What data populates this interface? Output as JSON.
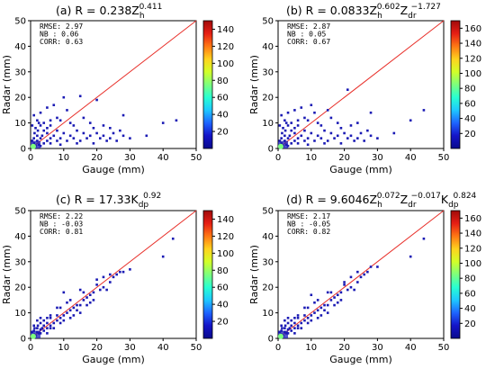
{
  "figure": {
    "colormap": [
      "#0a0a8c",
      "#1414c8",
      "#1e64ff",
      "#1ec8ff",
      "#28ffd2",
      "#7dff7d",
      "#d2ff28",
      "#ffd21e",
      "#ff7814",
      "#e61e14",
      "#a00a0a"
    ],
    "point_color": "#1a1ab4",
    "line_color": "#e8302a"
  },
  "chart_data": [
    {
      "type": "scatter",
      "panel": "(a)",
      "title_parts": [
        "(a)  R = 0.238Z",
        "h",
        "0.411"
      ],
      "xlabel": "Gauge (mm)",
      "ylabel": "Radar (mm)",
      "xlim": [
        0,
        50
      ],
      "ylim": [
        0,
        50
      ],
      "xticks": [
        0,
        10,
        20,
        30,
        40,
        50
      ],
      "yticks": [
        0,
        10,
        20,
        30,
        40,
        50
      ],
      "stats": [
        [
          "RMSE:",
          "2.97"
        ],
        [
          "NB  :",
          "0.06"
        ],
        [
          "CORR:",
          "0.63"
        ]
      ],
      "colorbar": {
        "min": 0,
        "max": 150,
        "ticks": [
          20,
          40,
          60,
          80,
          100,
          120,
          140
        ]
      },
      "reference_line": [
        [
          0,
          0
        ],
        [
          50,
          50
        ]
      ],
      "points": [
        [
          0.5,
          0.5
        ],
        [
          1,
          2
        ],
        [
          1.5,
          1
        ],
        [
          2,
          3
        ],
        [
          2.5,
          1.5
        ],
        [
          3,
          4
        ],
        [
          1,
          4
        ],
        [
          2,
          5
        ],
        [
          3,
          1
        ],
        [
          4,
          2
        ],
        [
          0.5,
          3
        ],
        [
          1.2,
          6
        ],
        [
          2.2,
          7
        ],
        [
          3.5,
          5
        ],
        [
          5,
          3
        ],
        [
          5,
          6
        ],
        [
          6,
          4
        ],
        [
          6,
          2
        ],
        [
          7,
          5
        ],
        [
          8,
          3
        ],
        [
          8,
          7
        ],
        [
          9,
          4
        ],
        [
          10,
          6
        ],
        [
          11,
          3
        ],
        [
          12,
          5
        ],
        [
          13,
          4
        ],
        [
          14,
          7
        ],
        [
          15,
          3
        ],
        [
          16,
          6
        ],
        [
          17,
          4
        ],
        [
          18,
          5
        ],
        [
          19,
          8
        ],
        [
          20,
          6
        ],
        [
          21,
          4
        ],
        [
          22,
          5
        ],
        [
          24,
          4
        ],
        [
          25,
          6
        ],
        [
          26,
          3
        ],
        [
          27,
          7
        ],
        [
          28,
          5
        ],
        [
          3,
          9
        ],
        [
          4,
          10
        ],
        [
          5,
          8
        ],
        [
          6,
          9
        ],
        [
          2,
          11
        ],
        [
          1,
          13
        ],
        [
          3,
          14
        ],
        [
          8,
          12
        ],
        [
          10,
          20
        ],
        [
          9,
          11
        ],
        [
          12,
          10
        ],
        [
          15,
          20.5
        ],
        [
          16,
          12
        ],
        [
          20,
          19
        ],
        [
          22,
          9
        ],
        [
          24,
          8
        ],
        [
          28,
          13
        ],
        [
          40,
          10
        ],
        [
          44,
          11
        ],
        [
          35,
          5
        ],
        [
          30,
          4
        ],
        [
          7,
          17
        ],
        [
          5,
          16
        ],
        [
          13,
          9
        ],
        [
          18,
          10
        ],
        [
          11,
          15
        ],
        [
          6,
          11
        ],
        [
          4,
          7
        ],
        [
          0.5,
          9
        ],
        [
          1.5,
          8
        ],
        [
          2.5,
          10
        ],
        [
          23,
          3
        ],
        [
          19,
          2
        ],
        [
          14,
          2
        ],
        [
          9,
          1.5
        ]
      ]
    },
    {
      "type": "scatter",
      "panel": "(b)",
      "title_parts": [
        "(b)  R = 0.0833Z",
        "h",
        "0.602",
        "Z",
        "dr",
        "−1.727"
      ],
      "xlabel": "Gauge (mm)",
      "ylabel": "Radar (mm)",
      "xlim": [
        0,
        50
      ],
      "ylim": [
        0,
        50
      ],
      "xticks": [
        0,
        10,
        20,
        30,
        40,
        50
      ],
      "yticks": [
        0,
        10,
        20,
        30,
        40,
        50
      ],
      "stats": [
        [
          "RMSE:",
          "2.87"
        ],
        [
          "NB  :",
          "0.05"
        ],
        [
          "CORR:",
          "0.67"
        ]
      ],
      "colorbar": {
        "min": 0,
        "max": 170,
        "ticks": [
          20,
          40,
          60,
          80,
          100,
          120,
          140,
          160
        ]
      },
      "reference_line": [
        [
          0,
          0
        ],
        [
          50,
          50
        ]
      ],
      "points": [
        [
          0.5,
          0.5
        ],
        [
          1,
          2
        ],
        [
          1.5,
          1
        ],
        [
          2,
          3
        ],
        [
          2.5,
          1.5
        ],
        [
          3,
          4
        ],
        [
          1,
          4
        ],
        [
          2,
          5
        ],
        [
          3,
          1
        ],
        [
          4,
          2
        ],
        [
          0.5,
          3
        ],
        [
          1.2,
          6
        ],
        [
          2.2,
          7
        ],
        [
          3.5,
          5
        ],
        [
          5,
          3
        ],
        [
          5,
          6
        ],
        [
          6,
          4
        ],
        [
          6,
          2
        ],
        [
          7,
          5
        ],
        [
          8,
          3
        ],
        [
          8,
          7
        ],
        [
          9,
          4
        ],
        [
          10,
          6
        ],
        [
          11,
          3
        ],
        [
          12,
          5
        ],
        [
          13,
          4
        ],
        [
          14,
          7
        ],
        [
          15,
          3
        ],
        [
          16,
          6
        ],
        [
          17,
          4
        ],
        [
          18,
          5
        ],
        [
          19,
          8
        ],
        [
          20,
          6
        ],
        [
          21,
          4
        ],
        [
          22,
          5
        ],
        [
          24,
          4
        ],
        [
          25,
          6
        ],
        [
          26,
          3
        ],
        [
          27,
          7
        ],
        [
          28,
          5
        ],
        [
          3,
          9
        ],
        [
          4,
          10
        ],
        [
          5,
          8
        ],
        [
          6,
          9
        ],
        [
          2,
          11
        ],
        [
          1,
          13
        ],
        [
          3,
          14
        ],
        [
          8,
          12
        ],
        [
          10,
          17
        ],
        [
          9,
          11
        ],
        [
          12,
          10
        ],
        [
          15,
          15
        ],
        [
          16,
          12
        ],
        [
          21,
          23
        ],
        [
          22,
          9
        ],
        [
          24,
          10
        ],
        [
          28,
          14
        ],
        [
          40,
          11
        ],
        [
          44,
          15
        ],
        [
          35,
          6
        ],
        [
          30,
          4
        ],
        [
          7,
          16
        ],
        [
          5,
          15
        ],
        [
          13,
          9
        ],
        [
          18,
          10
        ],
        [
          11,
          14
        ],
        [
          6,
          11
        ],
        [
          4,
          7
        ],
        [
          0.5,
          9
        ],
        [
          1.5,
          8
        ],
        [
          2.5,
          10
        ],
        [
          23,
          3
        ],
        [
          19,
          2
        ],
        [
          14,
          2
        ],
        [
          9,
          1.5
        ]
      ]
    },
    {
      "type": "scatter",
      "panel": "(c)",
      "title_parts": [
        "(c)  R = 17.33K",
        "dp",
        "0.92"
      ],
      "xlabel": "Gauge (mm)",
      "ylabel": "Radar (mm)",
      "xlim": [
        0,
        50
      ],
      "ylim": [
        0,
        50
      ],
      "xticks": [
        0,
        10,
        20,
        30,
        40,
        50
      ],
      "yticks": [
        0,
        10,
        20,
        30,
        40,
        50
      ],
      "stats": [
        [
          "RMSE:",
          "2.22"
        ],
        [
          "NB  :",
          "-0.03"
        ],
        [
          "CORR:",
          "0.81"
        ]
      ],
      "colorbar": {
        "min": 0,
        "max": 150,
        "ticks": [
          20,
          40,
          60,
          80,
          100,
          120,
          140
        ]
      },
      "reference_line": [
        [
          0,
          0
        ],
        [
          50,
          50
        ]
      ],
      "points": [
        [
          0.5,
          0.5
        ],
        [
          1,
          1.5
        ],
        [
          1.5,
          1
        ],
        [
          2,
          2.5
        ],
        [
          2.5,
          2
        ],
        [
          3,
          3.5
        ],
        [
          1,
          3
        ],
        [
          2,
          4
        ],
        [
          3,
          2
        ],
        [
          4,
          3
        ],
        [
          0.5,
          2.5
        ],
        [
          1.2,
          4
        ],
        [
          2.2,
          5
        ],
        [
          3.5,
          4
        ],
        [
          5,
          4
        ],
        [
          5,
          6
        ],
        [
          6,
          5
        ],
        [
          6,
          4
        ],
        [
          7,
          6
        ],
        [
          8,
          7
        ],
        [
          8,
          9
        ],
        [
          9,
          8
        ],
        [
          10,
          9
        ],
        [
          11,
          10
        ],
        [
          12,
          11
        ],
        [
          13,
          12
        ],
        [
          14,
          13
        ],
        [
          15,
          13
        ],
        [
          16,
          15
        ],
        [
          17,
          16
        ],
        [
          18,
          17
        ],
        [
          19,
          18
        ],
        [
          20,
          21
        ],
        [
          21,
          19
        ],
        [
          22,
          20
        ],
        [
          24,
          22
        ],
        [
          25,
          24
        ],
        [
          26,
          25
        ],
        [
          27,
          26
        ],
        [
          28,
          26
        ],
        [
          3,
          6
        ],
        [
          4,
          7
        ],
        [
          5,
          8
        ],
        [
          6,
          9
        ],
        [
          2,
          7
        ],
        [
          1,
          5
        ],
        [
          3,
          8
        ],
        [
          8,
          12
        ],
        [
          10,
          18
        ],
        [
          9,
          12
        ],
        [
          12,
          15
        ],
        [
          15,
          19
        ],
        [
          16,
          18
        ],
        [
          20,
          23
        ],
        [
          22,
          24
        ],
        [
          24,
          25
        ],
        [
          30,
          27
        ],
        [
          40,
          32
        ],
        [
          43,
          39
        ],
        [
          13,
          9
        ],
        [
          18,
          14
        ],
        [
          11,
          14
        ],
        [
          6,
          8
        ],
        [
          4,
          5
        ],
        [
          10,
          7
        ],
        [
          14,
          11
        ],
        [
          17,
          13
        ],
        [
          19,
          15
        ],
        [
          23,
          19
        ],
        [
          7,
          4
        ],
        [
          9,
          6
        ],
        [
          5,
          2
        ],
        [
          12,
          8
        ],
        [
          15,
          10
        ]
      ]
    },
    {
      "type": "scatter",
      "panel": "(d)",
      "title_parts": [
        "(d)  R = 9.6046Z",
        "h",
        "0.072",
        "Z",
        "dr",
        "−0.017",
        "K",
        "dp",
        "0.824"
      ],
      "xlabel": "Gauge (mm)",
      "ylabel": "Radar (mm)",
      "xlim": [
        0,
        50
      ],
      "ylim": [
        0,
        50
      ],
      "xticks": [
        0,
        10,
        20,
        30,
        40,
        50
      ],
      "yticks": [
        0,
        10,
        20,
        30,
        40,
        50
      ],
      "stats": [
        [
          "RMSE:",
          "2.17"
        ],
        [
          "NB  :",
          "-0.05"
        ],
        [
          "CORR:",
          "0.82"
        ]
      ],
      "colorbar": {
        "min": 0,
        "max": 170,
        "ticks": [
          20,
          40,
          60,
          80,
          100,
          120,
          140,
          160
        ]
      },
      "reference_line": [
        [
          0,
          0
        ],
        [
          50,
          50
        ]
      ],
      "points": [
        [
          0.5,
          0.5
        ],
        [
          1,
          1.5
        ],
        [
          1.5,
          1
        ],
        [
          2,
          2.5
        ],
        [
          2.5,
          2
        ],
        [
          3,
          3.5
        ],
        [
          1,
          3
        ],
        [
          2,
          4
        ],
        [
          3,
          2
        ],
        [
          4,
          3
        ],
        [
          0.5,
          2.5
        ],
        [
          1.2,
          4
        ],
        [
          2.2,
          5
        ],
        [
          3.5,
          4
        ],
        [
          5,
          4
        ],
        [
          5,
          6
        ],
        [
          6,
          5
        ],
        [
          6,
          4
        ],
        [
          7,
          6
        ],
        [
          8,
          7
        ],
        [
          8,
          9
        ],
        [
          9,
          8
        ],
        [
          10,
          9
        ],
        [
          11,
          10
        ],
        [
          12,
          11
        ],
        [
          13,
          12
        ],
        [
          14,
          13
        ],
        [
          15,
          13
        ],
        [
          16,
          15
        ],
        [
          17,
          16
        ],
        [
          18,
          17
        ],
        [
          19,
          18
        ],
        [
          20,
          21
        ],
        [
          21,
          19
        ],
        [
          22,
          20
        ],
        [
          24,
          22
        ],
        [
          25,
          24
        ],
        [
          26,
          25
        ],
        [
          27,
          26
        ],
        [
          28,
          28
        ],
        [
          3,
          6
        ],
        [
          4,
          7
        ],
        [
          5,
          8
        ],
        [
          6,
          9
        ],
        [
          2,
          7
        ],
        [
          1,
          5
        ],
        [
          3,
          8
        ],
        [
          8,
          12
        ],
        [
          10,
          17
        ],
        [
          9,
          12
        ],
        [
          12,
          15
        ],
        [
          15,
          18
        ],
        [
          16,
          18
        ],
        [
          20,
          22
        ],
        [
          22,
          24
        ],
        [
          24,
          26
        ],
        [
          30,
          28
        ],
        [
          40,
          32
        ],
        [
          44,
          39
        ],
        [
          13,
          9
        ],
        [
          18,
          14
        ],
        [
          11,
          14
        ],
        [
          6,
          8
        ],
        [
          4,
          5
        ],
        [
          10,
          7
        ],
        [
          14,
          11
        ],
        [
          17,
          13
        ],
        [
          19,
          15
        ],
        [
          23,
          19
        ],
        [
          7,
          4
        ],
        [
          9,
          6
        ],
        [
          5,
          2
        ],
        [
          12,
          8
        ],
        [
          15,
          10
        ]
      ]
    }
  ]
}
